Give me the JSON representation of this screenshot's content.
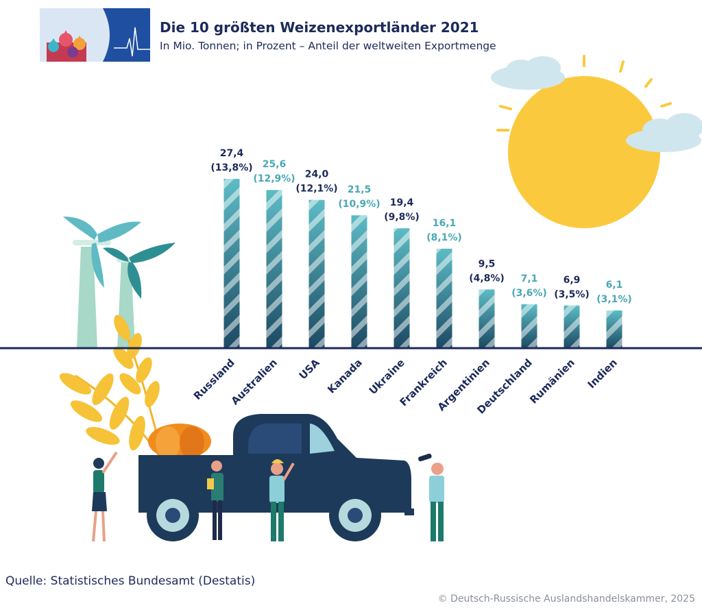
{
  "header": {
    "title": "Die 10 größten Weizenexportländer 2021",
    "subtitle": "In Mio. Tonnen; in Prozent – Anteil der weltweiten Exportmenge"
  },
  "footer": {
    "source": "Quelle: Statistisches Bundesamt (Destatis)",
    "copyright": "© Deutsch-Russische Auslandshandelskammer, 2025"
  },
  "colors": {
    "navy": "#1c2a5a",
    "teal_dark": "#1c4a63",
    "teal": "#5dbcc5",
    "teal_light": "#4aa8b4",
    "sun": "#fbc93e",
    "cloud": "#cfe6ee",
    "wheat": "#f3b52a"
  },
  "chart_data": {
    "type": "bar",
    "title": "Die 10 größten Weizenexportländer 2021",
    "subtitle": "In Mio. Tonnen; in Prozent – Anteil der weltweiten Exportmenge",
    "categories": [
      "Russland",
      "Australien",
      "USA",
      "Kanada",
      "Ukraine",
      "Frankreich",
      "Argentinien",
      "Deutschland",
      "Rumänien",
      "Indien"
    ],
    "values": [
      27.4,
      25.6,
      24.0,
      21.5,
      19.4,
      16.1,
      9.5,
      7.1,
      6.9,
      6.1
    ],
    "value_labels": [
      "27,4",
      "25,6",
      "24,0",
      "21,5",
      "19,4",
      "16,1",
      "9,5",
      "7,1",
      "6,9",
      "6,1"
    ],
    "share_labels": [
      "(13,8%)",
      "(12,9%)",
      "(12,1%)",
      "(10,9%)",
      "(9,8%)",
      "(8,1%)",
      "(4,8%)",
      "(3,6%)",
      "(3,5%)",
      "(3,1%)"
    ],
    "label_colors": [
      "#1c2a5a",
      "#4aa8b4",
      "#1c2a5a",
      "#4aa8b4",
      "#1c2a5a",
      "#4aa8b4",
      "#1c2a5a",
      "#4aa8b4",
      "#1c2a5a",
      "#4aa8b4"
    ],
    "ylim": [
      0,
      27.4
    ],
    "xlabel": "",
    "ylabel": "",
    "grid": false,
    "legend": "none"
  }
}
